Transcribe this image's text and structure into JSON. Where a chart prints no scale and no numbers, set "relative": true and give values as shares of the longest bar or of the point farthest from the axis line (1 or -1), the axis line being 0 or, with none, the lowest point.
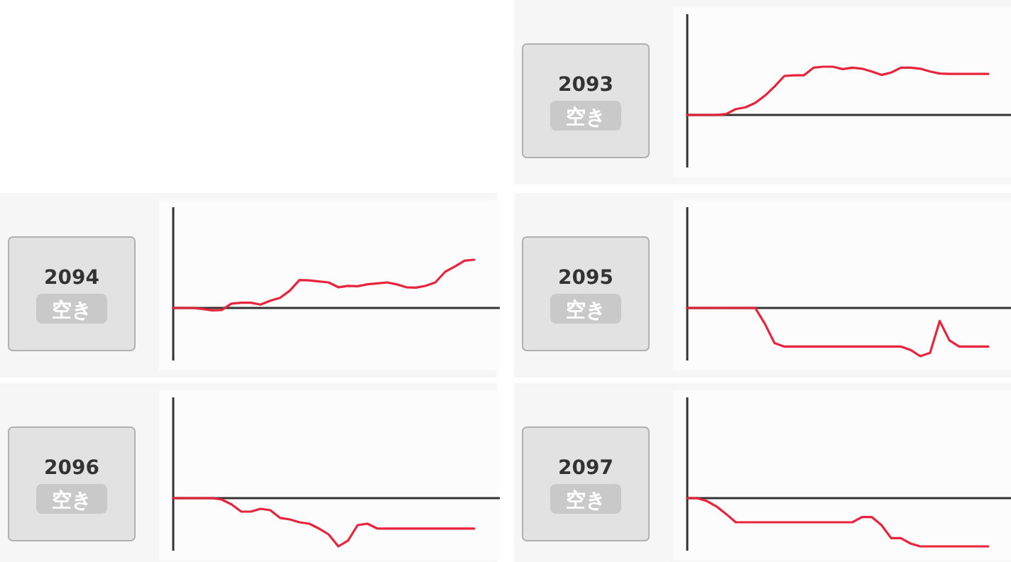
{
  "chart_data": [
    {
      "type": "line",
      "title": "2093",
      "annotations": [
        "空き"
      ],
      "relative": true,
      "color": "#e8243c",
      "categories": [
        null,
        null,
        null,
        null,
        null,
        null,
        null,
        null,
        null,
        null,
        null,
        null,
        null,
        null,
        null,
        null,
        null,
        null,
        null,
        null,
        null,
        null,
        null,
        null,
        null,
        null,
        null,
        null,
        null,
        null,
        null,
        null
      ],
      "values": [
        0,
        0,
        0,
        0,
        0.02,
        0.12,
        0.16,
        0.25,
        0.4,
        0.59,
        0.81,
        0.82,
        0.82,
        0.98,
        1,
        1,
        0.95,
        0.98,
        0.96,
        0.9,
        0.83,
        0.88,
        0.98,
        0.98,
        0.96,
        0.9,
        0.86,
        0.85,
        0.85,
        0.85,
        0.85,
        0.85
      ]
    },
    {
      "type": "line",
      "title": "2094",
      "annotations": [
        "空き"
      ],
      "relative": true,
      "color": "#e8243c",
      "categories": [
        null,
        null,
        null,
        null,
        null,
        null,
        null,
        null,
        null,
        null,
        null,
        null,
        null,
        null,
        null,
        null,
        null,
        null,
        null,
        null,
        null,
        null,
        null,
        null,
        null,
        null,
        null,
        null,
        null,
        null,
        null,
        null
      ],
      "values": [
        0,
        0,
        0,
        -0.02,
        -0.05,
        -0.04,
        0.09,
        0.11,
        0.11,
        0.07,
        0.15,
        0.21,
        0.36,
        0.58,
        0.57,
        0.55,
        0.53,
        0.43,
        0.46,
        0.45,
        0.49,
        0.51,
        0.53,
        0.49,
        0.43,
        0.42,
        0.46,
        0.53,
        0.75,
        0.86,
        0.98,
        1
      ]
    },
    {
      "type": "line",
      "title": "2095",
      "annotations": [
        "空き"
      ],
      "relative": true,
      "color": "#e8243c",
      "categories": [
        null,
        null,
        null,
        null,
        null,
        null,
        null,
        null,
        null,
        null,
        null,
        null,
        null,
        null,
        null,
        null,
        null,
        null,
        null,
        null,
        null,
        null,
        null,
        null,
        null,
        null,
        null,
        null,
        null,
        null,
        null,
        null
      ],
      "values": [
        0,
        0,
        0,
        0,
        0,
        0,
        0,
        0,
        -0.33,
        -0.73,
        -0.8,
        -0.8,
        -0.8,
        -0.8,
        -0.8,
        -0.8,
        -0.8,
        -0.8,
        -0.8,
        -0.8,
        -0.8,
        -0.8,
        -0.8,
        -0.87,
        -1,
        -0.93,
        -0.27,
        -0.67,
        -0.8,
        -0.8,
        -0.8,
        -0.8
      ]
    },
    {
      "type": "line",
      "title": "2096",
      "annotations": [
        "空き"
      ],
      "relative": true,
      "color": "#e8243c",
      "categories": [
        null,
        null,
        null,
        null,
        null,
        null,
        null,
        null,
        null,
        null,
        null,
        null,
        null,
        null,
        null,
        null,
        null,
        null,
        null,
        null,
        null,
        null,
        null,
        null,
        null,
        null,
        null,
        null,
        null,
        null,
        null,
        null
      ],
      "values": [
        0,
        0,
        0,
        0,
        0,
        -0.03,
        -0.13,
        -0.28,
        -0.28,
        -0.22,
        -0.25,
        -0.41,
        -0.44,
        -0.5,
        -0.53,
        -0.63,
        -0.75,
        -1,
        -0.88,
        -0.56,
        -0.53,
        -0.63,
        -0.63,
        -0.63,
        -0.63,
        -0.63,
        -0.63,
        -0.63,
        -0.63,
        -0.63,
        -0.63,
        -0.63
      ]
    },
    {
      "type": "line",
      "title": "2097",
      "annotations": [
        "空き"
      ],
      "relative": true,
      "color": "#e8243c",
      "categories": [
        null,
        null,
        null,
        null,
        null,
        null,
        null,
        null,
        null,
        null,
        null,
        null,
        null,
        null,
        null,
        null,
        null,
        null,
        null,
        null,
        null,
        null,
        null,
        null,
        null,
        null,
        null,
        null,
        null,
        null,
        null,
        null
      ],
      "values": [
        0,
        0,
        -0.06,
        -0.17,
        -0.33,
        -0.5,
        -0.5,
        -0.5,
        -0.5,
        -0.5,
        -0.5,
        -0.5,
        -0.5,
        -0.5,
        -0.5,
        -0.5,
        -0.5,
        -0.5,
        -0.39,
        -0.39,
        -0.56,
        -0.83,
        -0.83,
        -0.94,
        -1,
        -1,
        -1,
        -1,
        -1,
        -1,
        -1,
        -1
      ]
    }
  ]
}
